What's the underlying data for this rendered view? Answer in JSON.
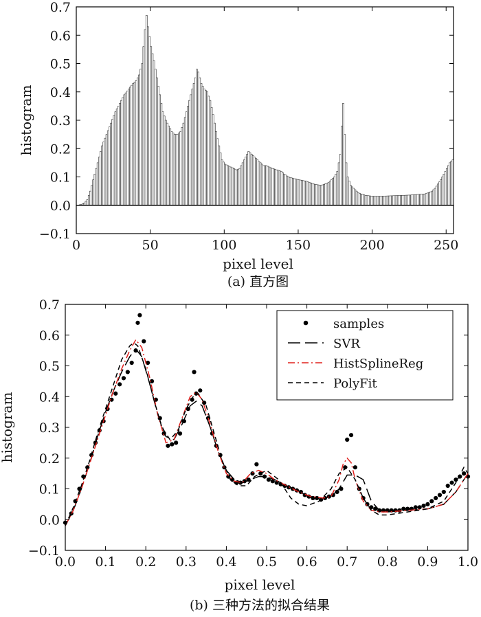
{
  "chart_data": [
    {
      "type": "bar",
      "caption": "(a) 直方图",
      "xlabel": "pixel level",
      "ylabel": "histogram",
      "xlim": [
        0,
        255
      ],
      "ylim": [
        -0.1,
        0.7
      ],
      "xticks": [
        "0",
        "50",
        "100",
        "150",
        "200",
        "250"
      ],
      "yticks": [
        "−0.1",
        "0.0",
        "0.1",
        "0.2",
        "0.3",
        "0.4",
        "0.5",
        "0.6",
        "0.7"
      ],
      "grid": false,
      "keypoints_x": [
        0,
        3,
        5,
        7,
        9,
        11,
        13,
        15,
        17,
        20,
        23,
        26,
        29,
        32,
        35,
        38,
        40,
        42,
        44,
        45,
        46,
        47,
        48,
        50,
        52,
        54,
        56,
        58,
        60,
        62,
        64,
        66,
        68,
        70,
        72,
        74,
        76,
        78,
        80,
        81,
        82,
        84,
        86,
        88,
        90,
        92,
        94,
        96,
        98,
        100,
        102,
        104,
        106,
        108,
        110,
        112,
        114,
        116,
        118,
        120,
        122,
        124,
        126,
        128,
        130,
        132,
        135,
        138,
        140,
        143,
        146,
        150,
        155,
        160,
        165,
        170,
        172,
        174,
        176,
        178,
        179,
        180,
        181,
        182,
        183,
        185,
        188,
        190,
        192,
        195,
        200,
        205,
        210,
        215,
        220,
        225,
        230,
        235,
        238,
        240,
        242,
        244,
        246,
        248,
        250,
        252,
        254,
        255
      ],
      "keypoints_y": [
        0.0,
        0.003,
        0.008,
        0.02,
        0.05,
        0.09,
        0.13,
        0.17,
        0.21,
        0.25,
        0.29,
        0.33,
        0.36,
        0.39,
        0.41,
        0.43,
        0.44,
        0.46,
        0.5,
        0.56,
        0.62,
        0.67,
        0.63,
        0.56,
        0.51,
        0.45,
        0.39,
        0.33,
        0.3,
        0.28,
        0.26,
        0.25,
        0.25,
        0.26,
        0.29,
        0.33,
        0.37,
        0.41,
        0.45,
        0.48,
        0.47,
        0.43,
        0.41,
        0.4,
        0.37,
        0.32,
        0.26,
        0.21,
        0.16,
        0.145,
        0.14,
        0.135,
        0.13,
        0.125,
        0.13,
        0.15,
        0.17,
        0.19,
        0.18,
        0.17,
        0.16,
        0.15,
        0.14,
        0.14,
        0.135,
        0.13,
        0.125,
        0.12,
        0.11,
        0.1,
        0.095,
        0.09,
        0.085,
        0.075,
        0.07,
        0.08,
        0.09,
        0.1,
        0.12,
        0.18,
        0.28,
        0.36,
        0.25,
        0.15,
        0.1,
        0.07,
        0.055,
        0.045,
        0.04,
        0.035,
        0.032,
        0.032,
        0.033,
        0.034,
        0.035,
        0.036,
        0.038,
        0.04,
        0.045,
        0.05,
        0.06,
        0.075,
        0.09,
        0.11,
        0.13,
        0.15,
        0.16,
        0.16
      ]
    },
    {
      "type": "line",
      "caption": "(b) 三种方法的拟合结果",
      "xlabel": "pixel level",
      "ylabel": "histogram",
      "xlim": [
        0.0,
        1.0
      ],
      "ylim": [
        -0.1,
        0.7
      ],
      "xticks": [
        "0.0",
        "0.1",
        "0.2",
        "0.3",
        "0.4",
        "0.5",
        "0.6",
        "0.7",
        "0.8",
        "0.9",
        "1.0"
      ],
      "yticks": [
        "−0.1",
        "0.0",
        "0.1",
        "0.2",
        "0.3",
        "0.4",
        "0.5",
        "0.6",
        "0.7"
      ],
      "grid": false,
      "legend_position": "top-right",
      "series": [
        {
          "name": "samples",
          "style": "scatter",
          "color": "#000000",
          "x": [
            0.0,
            0.015,
            0.025,
            0.035,
            0.045,
            0.055,
            0.065,
            0.075,
            0.085,
            0.095,
            0.105,
            0.115,
            0.125,
            0.135,
            0.145,
            0.155,
            0.165,
            0.175,
            0.18,
            0.185,
            0.195,
            0.205,
            0.215,
            0.225,
            0.235,
            0.245,
            0.255,
            0.265,
            0.275,
            0.285,
            0.295,
            0.305,
            0.315,
            0.32,
            0.325,
            0.335,
            0.345,
            0.355,
            0.365,
            0.375,
            0.385,
            0.395,
            0.405,
            0.415,
            0.425,
            0.435,
            0.445,
            0.455,
            0.465,
            0.475,
            0.485,
            0.495,
            0.505,
            0.515,
            0.525,
            0.535,
            0.545,
            0.555,
            0.565,
            0.575,
            0.585,
            0.595,
            0.605,
            0.615,
            0.625,
            0.635,
            0.645,
            0.655,
            0.665,
            0.675,
            0.685,
            0.695,
            0.7,
            0.71,
            0.72,
            0.73,
            0.74,
            0.75,
            0.76,
            0.77,
            0.78,
            0.79,
            0.8,
            0.81,
            0.82,
            0.83,
            0.84,
            0.85,
            0.86,
            0.87,
            0.88,
            0.89,
            0.9,
            0.91,
            0.92,
            0.93,
            0.94,
            0.95,
            0.96,
            0.97,
            0.98,
            0.99,
            1.0
          ],
          "y": [
            -0.01,
            0.02,
            0.06,
            0.1,
            0.14,
            0.17,
            0.21,
            0.25,
            0.29,
            0.32,
            0.36,
            0.39,
            0.41,
            0.44,
            0.46,
            0.48,
            0.51,
            0.55,
            0.64,
            0.665,
            0.58,
            0.51,
            0.45,
            0.39,
            0.33,
            0.28,
            0.24,
            0.245,
            0.25,
            0.28,
            0.32,
            0.36,
            0.39,
            0.48,
            0.41,
            0.42,
            0.38,
            0.33,
            0.28,
            0.24,
            0.21,
            0.17,
            0.14,
            0.13,
            0.12,
            0.12,
            0.125,
            0.13,
            0.15,
            0.18,
            0.15,
            0.14,
            0.13,
            0.125,
            0.12,
            0.115,
            0.11,
            0.105,
            0.1,
            0.095,
            0.09,
            0.08,
            0.075,
            0.07,
            0.07,
            0.065,
            0.07,
            0.075,
            0.08,
            0.09,
            0.1,
            0.17,
            0.26,
            0.275,
            0.17,
            0.1,
            0.07,
            0.05,
            0.04,
            0.035,
            0.03,
            0.03,
            0.03,
            0.03,
            0.03,
            0.03,
            0.035,
            0.035,
            0.035,
            0.04,
            0.04,
            0.045,
            0.05,
            0.06,
            0.07,
            0.08,
            0.09,
            0.11,
            0.12,
            0.13,
            0.14,
            0.15,
            0.14
          ]
        },
        {
          "name": "SVR",
          "style": "long-dash",
          "color": "#000000",
          "x": [
            0.0,
            0.02,
            0.04,
            0.06,
            0.08,
            0.1,
            0.12,
            0.14,
            0.16,
            0.175,
            0.19,
            0.21,
            0.23,
            0.25,
            0.27,
            0.29,
            0.31,
            0.325,
            0.34,
            0.36,
            0.38,
            0.4,
            0.42,
            0.44,
            0.46,
            0.48,
            0.5,
            0.52,
            0.55,
            0.58,
            0.61,
            0.64,
            0.66,
            0.68,
            0.7,
            0.72,
            0.74,
            0.76,
            0.78,
            0.8,
            0.85,
            0.9,
            0.94,
            0.97,
            0.99,
            1.0
          ],
          "y": [
            -0.02,
            0.03,
            0.1,
            0.18,
            0.27,
            0.35,
            0.42,
            0.48,
            0.53,
            0.555,
            0.53,
            0.44,
            0.34,
            0.27,
            0.26,
            0.31,
            0.37,
            0.385,
            0.37,
            0.3,
            0.22,
            0.16,
            0.13,
            0.12,
            0.13,
            0.14,
            0.14,
            0.13,
            0.11,
            0.09,
            0.075,
            0.07,
            0.075,
            0.1,
            0.145,
            0.145,
            0.13,
            0.06,
            0.03,
            0.025,
            0.03,
            0.035,
            0.05,
            0.09,
            0.13,
            0.15
          ]
        },
        {
          "name": "HistSplineReg",
          "style": "dash-dot",
          "color": "#e0201c",
          "x": [
            0.0,
            0.02,
            0.04,
            0.06,
            0.08,
            0.1,
            0.12,
            0.14,
            0.16,
            0.175,
            0.19,
            0.21,
            0.23,
            0.25,
            0.27,
            0.29,
            0.31,
            0.325,
            0.34,
            0.36,
            0.38,
            0.4,
            0.42,
            0.44,
            0.46,
            0.48,
            0.5,
            0.52,
            0.55,
            0.58,
            0.61,
            0.64,
            0.66,
            0.68,
            0.69,
            0.7,
            0.71,
            0.72,
            0.74,
            0.76,
            0.78,
            0.8,
            0.85,
            0.9,
            0.94,
            0.97,
            0.99,
            1.0
          ],
          "y": [
            -0.02,
            0.03,
            0.1,
            0.18,
            0.26,
            0.34,
            0.42,
            0.49,
            0.55,
            0.585,
            0.56,
            0.46,
            0.34,
            0.25,
            0.26,
            0.33,
            0.4,
            0.415,
            0.39,
            0.31,
            0.22,
            0.15,
            0.125,
            0.12,
            0.15,
            0.16,
            0.15,
            0.13,
            0.11,
            0.09,
            0.075,
            0.07,
            0.075,
            0.13,
            0.18,
            0.2,
            0.185,
            0.13,
            0.06,
            0.03,
            0.025,
            0.025,
            0.03,
            0.035,
            0.05,
            0.09,
            0.13,
            0.15
          ]
        },
        {
          "name": "PolyFit",
          "style": "dash",
          "color": "#000000",
          "x": [
            0.0,
            0.02,
            0.04,
            0.06,
            0.08,
            0.1,
            0.12,
            0.14,
            0.16,
            0.17,
            0.18,
            0.2,
            0.22,
            0.24,
            0.26,
            0.28,
            0.3,
            0.32,
            0.33,
            0.35,
            0.37,
            0.39,
            0.41,
            0.43,
            0.45,
            0.47,
            0.5,
            0.53,
            0.56,
            0.58,
            0.6,
            0.63,
            0.66,
            0.68,
            0.7,
            0.72,
            0.74,
            0.76,
            0.78,
            0.8,
            0.85,
            0.9,
            0.94,
            0.97,
            0.99,
            1.0
          ],
          "y": [
            -0.02,
            0.04,
            0.11,
            0.19,
            0.28,
            0.36,
            0.44,
            0.52,
            0.565,
            0.575,
            0.565,
            0.49,
            0.39,
            0.3,
            0.26,
            0.29,
            0.36,
            0.405,
            0.41,
            0.37,
            0.28,
            0.19,
            0.13,
            0.11,
            0.11,
            0.14,
            0.16,
            0.13,
            0.07,
            0.05,
            0.045,
            0.06,
            0.1,
            0.15,
            0.17,
            0.13,
            0.07,
            0.03,
            0.015,
            0.015,
            0.025,
            0.035,
            0.06,
            0.12,
            0.17,
            0.15
          ]
        }
      ]
    }
  ]
}
